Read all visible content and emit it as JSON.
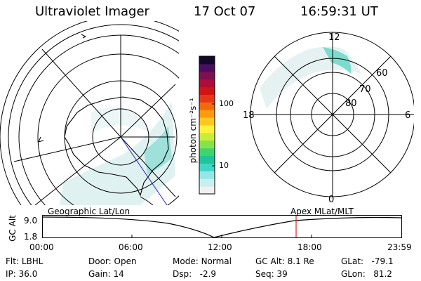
{
  "header": {
    "instrument": "Ultraviolet Imager",
    "date": "17 Oct 07",
    "time": "16:59:31 UT"
  },
  "colorbar": {
    "unit_label": "photon cm⁻²s⁻¹",
    "ticks": [
      "100",
      "10"
    ],
    "colors": [
      "#f0f0f0",
      "#c8eeee",
      "#96e6e6",
      "#3fd6c6",
      "#1fc49a",
      "#3dd66a",
      "#86e24a",
      "#c8ec3a",
      "#fff23c",
      "#ffc81e",
      "#ff9a0c",
      "#f06a0a",
      "#e8361a",
      "#d01414",
      "#aa0e3a",
      "#7c1050",
      "#4a0e60",
      "#14082a"
    ]
  },
  "polar_map": {
    "mlat_labels": [
      "60",
      "70",
      "80"
    ],
    "mlt_labels": [
      "12",
      "18",
      "6",
      "0"
    ]
  },
  "timeline": {
    "left_caption": "Geographic Lat/Lon",
    "right_caption": "Apex  MLat/MLT",
    "axis_title": "GC Alt",
    "y_top": "9.0",
    "y_bottom": "1.8",
    "x_ticks": [
      "00:00",
      "06:00",
      "12:00",
      "18:00",
      "23:59"
    ],
    "marker_color": "#dd2222"
  },
  "status": {
    "filter_label": "Flt:",
    "filter_value": "LBHL",
    "ip_label": "IP:",
    "ip_value": "36.0",
    "door_label": "Door:",
    "door_value": "Open",
    "gain_label": "Gain:",
    "gain_value": "14",
    "mode_label": "Mode:",
    "mode_value": "Normal",
    "dsp_label": "Dsp:",
    "dsp_value": "-2.9",
    "gcalt_label": "GC Alt:",
    "gcalt_value": "8.1 Re",
    "seq_label": "Seq:",
    "seq_value": "39",
    "glat_label": "GLat:",
    "glat_value": "-79.1",
    "glon_label": "GLon:",
    "glon_value": "81.2"
  }
}
